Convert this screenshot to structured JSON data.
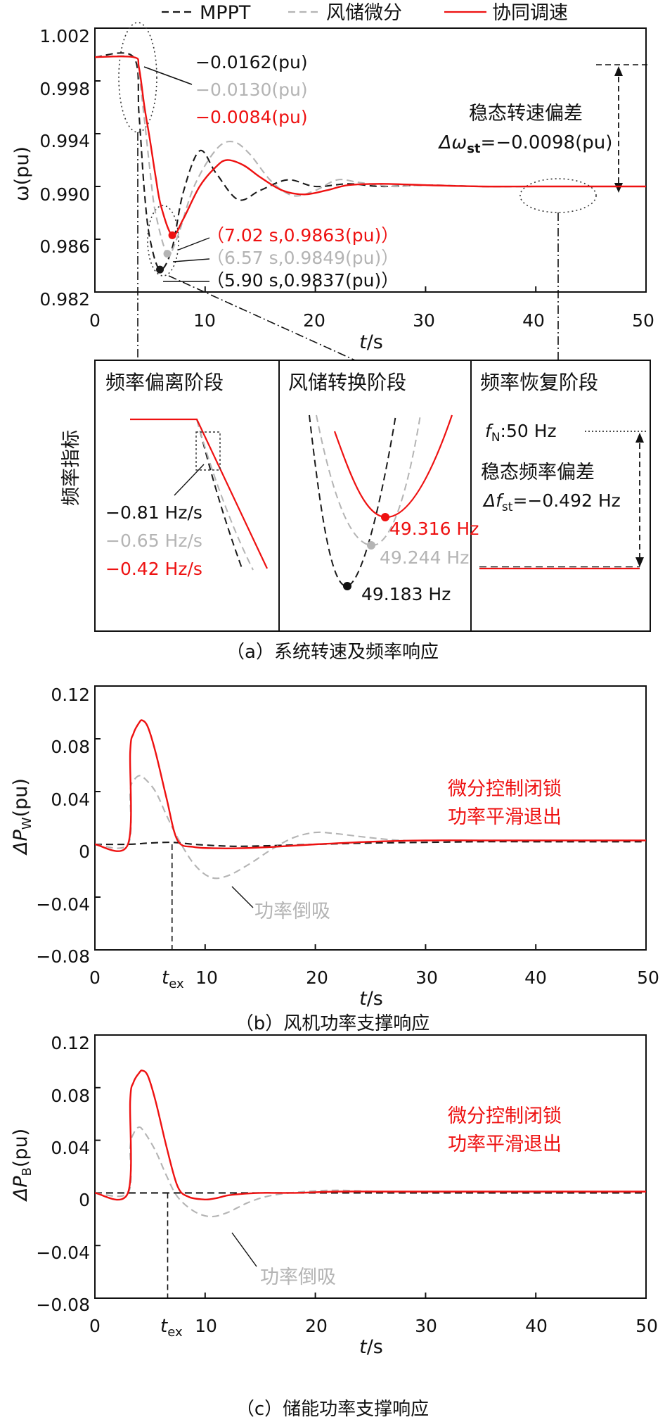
{
  "figure": {
    "legend": [
      "MPPT",
      "风储微分",
      "协同调速"
    ],
    "colors": {
      "mppt": "#1a1a1a",
      "wind_storage": "#b4b4b4",
      "coordinated": "#ee1111"
    },
    "caption_a": "（a）系统转速及频率响应",
    "caption_b": "（b）风机功率支撑响应",
    "caption_c": "（c）储能功率支撑响应"
  },
  "chart_data": [
    {
      "id": "a",
      "type": "line",
      "title": "系统转速及频率响应",
      "xlabel": "t/s",
      "ylabel": "ω(pu)",
      "xlim": [
        0,
        50
      ],
      "ylim": [
        0.982,
        1.002
      ],
      "xticks": [
        "0",
        "10",
        "20",
        "30",
        "40",
        "50"
      ],
      "yticks": [
        "0.982",
        "0.986",
        "0.990",
        "0.994",
        "0.998",
        "1.002"
      ],
      "series": [
        {
          "name": "MPPT",
          "style": "dashed",
          "x": [
            0,
            3.5,
            4,
            4.5,
            5,
            5.9,
            7,
            8,
            9.5,
            11,
            13,
            15,
            17.5,
            20,
            23,
            26,
            30,
            35,
            40,
            45,
            50
          ],
          "y": [
            0.9998,
            0.9998,
            0.9955,
            0.9895,
            0.986,
            0.9837,
            0.9853,
            0.9895,
            0.9927,
            0.991,
            0.989,
            0.9897,
            0.9905,
            0.99,
            0.9902,
            0.99,
            0.9901,
            0.99,
            0.99,
            0.99,
            0.99
          ]
        },
        {
          "name": "风储微分",
          "style": "dashed",
          "x": [
            0,
            3.5,
            4,
            4.5,
            5,
            5.5,
            6.57,
            7.5,
            9,
            11,
            12.5,
            14,
            16,
            18,
            20,
            22,
            24,
            27,
            30,
            35,
            40,
            45,
            50
          ],
          "y": [
            0.9998,
            0.9998,
            0.9985,
            0.995,
            0.9912,
            0.988,
            0.9849,
            0.9862,
            0.99,
            0.9928,
            0.9934,
            0.9925,
            0.9904,
            0.9893,
            0.9897,
            0.9905,
            0.9903,
            0.99,
            0.9901,
            0.99,
            0.99,
            0.99,
            0.99
          ]
        },
        {
          "name": "协同调速",
          "style": "solid",
          "x": [
            0,
            3.5,
            4,
            4.5,
            5,
            5.5,
            6,
            7.02,
            8,
            9.5,
            11,
            12,
            13.5,
            15,
            17,
            19,
            21,
            23,
            26,
            30,
            35,
            40,
            45,
            50
          ],
          "y": [
            0.9998,
            0.9998,
            0.999,
            0.996,
            0.9935,
            0.9908,
            0.9885,
            0.9863,
            0.9875,
            0.99,
            0.9915,
            0.992,
            0.9916,
            0.9907,
            0.9897,
            0.9894,
            0.9897,
            0.9901,
            0.9902,
            0.9901,
            0.99,
            0.99,
            0.99,
            0.99
          ]
        }
      ],
      "annotations": {
        "rate_deviation": [
          "−0.0162(pu)",
          "−0.0130(pu)",
          "−0.0084(pu)"
        ],
        "nadir": [
          "（7.02 s,0.9863(pu)）",
          "（6.57 s,0.9849(pu)）",
          "（5.90 s,0.9837(pu)）"
        ],
        "steady_title": "稳态转速偏差",
        "steady_value_prefix": "Δω",
        "steady_value_sub": "st",
        "steady_value_suffix": "=−0.0098(pu)"
      },
      "insets": {
        "ylabel": "频率指标",
        "titles": [
          "频率偏离阶段",
          "风储转换阶段",
          "频率恢复阶段"
        ],
        "rocof": [
          "−0.81 Hz/s",
          "−0.65 Hz/s",
          "−0.42 Hz/s"
        ],
        "nadir_freq": [
          "49.316 Hz",
          "49.244 Hz",
          "49.183 Hz"
        ],
        "fn_prefix": "f",
        "fn_sub": "N",
        "fn_suffix": ":50 Hz",
        "steady_freq_title": "稳态频率偏差",
        "steady_freq_prefix": "Δf",
        "steady_freq_sub": "st",
        "steady_freq_suffix": "=−0.492 Hz"
      }
    },
    {
      "id": "b",
      "type": "line",
      "title": "风机功率支撑响应",
      "xlabel": "t/s",
      "ylabel": "ΔPW(pu)",
      "ylabel_main": "ΔP",
      "ylabel_sub": "W",
      "ylabel_suffix": "(pu)",
      "xlim": [
        0,
        50
      ],
      "ylim": [
        -0.08,
        0.12
      ],
      "xticks": [
        "0",
        "10",
        "20",
        "30",
        "40",
        "50"
      ],
      "yticks": [
        "−0.08",
        "−0.04",
        "0",
        "0.04",
        "0.08",
        "0.12"
      ],
      "series": [
        {
          "name": "MPPT",
          "style": "dashed",
          "x": [
            0,
            3,
            5,
            7,
            9,
            11,
            13,
            16,
            20,
            25,
            30,
            35,
            40,
            45,
            50
          ],
          "y": [
            0,
            0,
            0.001,
            0.0015,
            0.0,
            -0.001,
            -0.0015,
            -0.001,
            0.0,
            0.001,
            0.0015,
            0.002,
            0.002,
            0.002,
            0.002
          ]
        },
        {
          "name": "风储微分",
          "style": "dashed",
          "x": [
            0,
            3,
            3.2,
            3.5,
            4,
            4.5,
            5.5,
            6.5,
            7.5,
            9,
            10.5,
            12,
            14,
            16,
            18,
            20,
            22,
            25,
            28,
            32,
            36,
            40,
            45,
            50
          ],
          "y": [
            0,
            0,
            0.04,
            0.048,
            0.052,
            0.05,
            0.04,
            0.022,
            0.005,
            -0.015,
            -0.025,
            -0.024,
            -0.015,
            -0.004,
            0.005,
            0.009,
            0.008,
            0.005,
            0.003,
            0.003,
            0.003,
            0.003,
            0.003,
            0.003
          ]
        },
        {
          "name": "协同调速",
          "style": "solid",
          "x": [
            0,
            3,
            3.2,
            3.5,
            4,
            4.3,
            4.8,
            5.5,
            6.5,
            7.5,
            9,
            11,
            13,
            16,
            20,
            25,
            30,
            35,
            40,
            45,
            50
          ],
          "y": [
            0,
            0,
            0.07,
            0.084,
            0.092,
            0.094,
            0.089,
            0.07,
            0.035,
            0.003,
            -0.002,
            -0.003,
            -0.003,
            -0.002,
            0.0,
            0.002,
            0.003,
            0.003,
            0.003,
            0.003,
            0.003
          ]
        }
      ],
      "annotations": {
        "red_text": [
          "微分控制闭锁",
          "功率平滑退出"
        ],
        "gray_text": "功率倒吸",
        "tex_main": "t",
        "tex_sub": "ex",
        "tex_x": 7.0
      }
    },
    {
      "id": "c",
      "type": "line",
      "title": "储能功率支撑响应",
      "xlabel": "t/s",
      "ylabel": "ΔPB(pu)",
      "ylabel_main": "ΔP",
      "ylabel_sub": "B",
      "ylabel_suffix": "(pu)",
      "xlim": [
        0,
        50
      ],
      "ylim": [
        -0.08,
        0.12
      ],
      "xticks": [
        "0",
        "10",
        "20",
        "30",
        "40",
        "50"
      ],
      "yticks": [
        "−0.08",
        "−0.04",
        "0",
        "0.04",
        "0.08",
        "0.12"
      ],
      "series": [
        {
          "name": "MPPT",
          "style": "dashed",
          "x": [
            0,
            50
          ],
          "y": [
            0,
            0
          ]
        },
        {
          "name": "风储微分",
          "style": "dashed",
          "x": [
            0,
            3,
            3.2,
            3.5,
            4,
            4.5,
            5.5,
            6.5,
            7.5,
            9,
            10.5,
            12,
            14,
            16,
            19,
            22,
            26,
            30,
            35,
            40,
            45,
            50
          ],
          "y": [
            0,
            0,
            0.035,
            0.045,
            0.05,
            0.046,
            0.032,
            0.013,
            -0.003,
            -0.014,
            -0.018,
            -0.015,
            -0.007,
            -0.002,
            0.001,
            0.002,
            0.001,
            0.001,
            0.001,
            0.001,
            0.001,
            0.001
          ]
        },
        {
          "name": "协同调速",
          "style": "solid",
          "x": [
            0,
            3,
            3.2,
            3.5,
            4,
            4.3,
            4.8,
            5.5,
            6.5,
            7.5,
            8.5,
            10,
            11,
            12,
            13,
            15,
            18,
            22,
            26,
            30,
            35,
            40,
            45,
            50
          ],
          "y": [
            0,
            0,
            0.07,
            0.084,
            0.091,
            0.093,
            0.089,
            0.07,
            0.035,
            0.005,
            -0.003,
            -0.005,
            -0.004,
            -0.002,
            -0.001,
            0.0,
            0.0,
            0.001,
            0.001,
            0.001,
            0.001,
            0.001,
            0.001,
            0.001
          ]
        }
      ],
      "annotations": {
        "red_text": [
          "微分控制闭锁",
          "功率平滑退出"
        ],
        "gray_text": "功率倒吸",
        "tex_main": "t",
        "tex_sub": "ex",
        "tex_x": 6.6
      }
    }
  ]
}
